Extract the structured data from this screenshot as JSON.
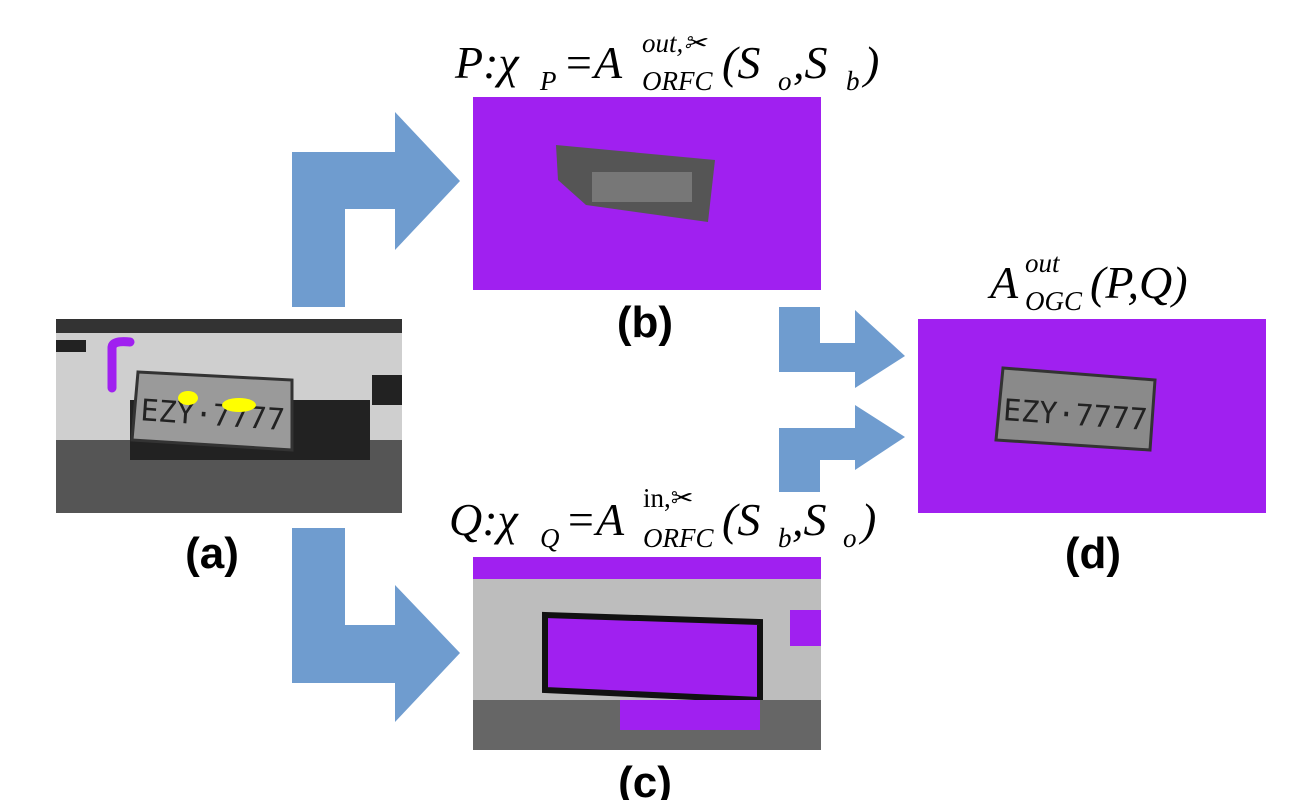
{
  "labels": {
    "a": "(a)",
    "b": "(b)",
    "c": "(c)",
    "d": "(d)"
  },
  "formulas": {
    "b": [
      "P:χ",
      "P",
      "=A",
      "out,✂",
      "ORFC",
      "(S",
      "o",
      ",S",
      "b",
      ")"
    ],
    "c": [
      "Q:χ",
      "Q",
      "=A",
      "in,✂",
      "ORFC",
      "(S",
      "b",
      ",S",
      "o",
      ")"
    ],
    "d": [
      "A",
      "out",
      "OGC",
      "(P,Q)"
    ]
  },
  "plate_text": "EZY·7777"
}
